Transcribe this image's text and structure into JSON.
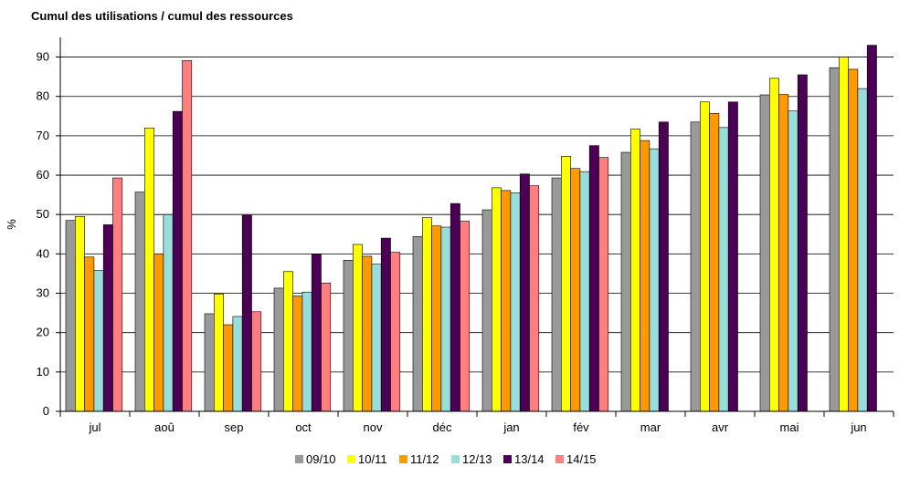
{
  "chart_data": {
    "type": "bar",
    "title": "Cumul des utilisations / cumul des ressources",
    "xlabel": "",
    "ylabel": "%",
    "ylim": [
      0,
      90
    ],
    "yticks": [
      0,
      10,
      20,
      30,
      40,
      50,
      60,
      70,
      80,
      90
    ],
    "grid": "horizontal",
    "legend_position": "bottom",
    "categories": [
      "jul",
      "aoû",
      "sep",
      "oct",
      "nov",
      "déc",
      "jan",
      "fév",
      "mar",
      "avr",
      "mai",
      "jun"
    ],
    "series": [
      {
        "name": "09/10",
        "color": "#999999",
        "values": [
          48.5,
          55.7,
          24.8,
          31.3,
          38.4,
          44.4,
          51.2,
          59.3,
          65.8,
          73.5,
          80.4,
          87.3
        ]
      },
      {
        "name": "10/11",
        "color": "#ffff00",
        "values": [
          49.5,
          72.0,
          29.8,
          35.5,
          42.4,
          49.2,
          56.8,
          64.8,
          71.7,
          78.6,
          84.6,
          90.0
        ]
      },
      {
        "name": "11/12",
        "color": "#ff9900",
        "values": [
          39.2,
          40.0,
          22.0,
          29.3,
          39.4,
          47.1,
          56.1,
          61.7,
          68.8,
          75.7,
          80.5,
          86.9
        ]
      },
      {
        "name": "12/13",
        "color": "#99dddd",
        "values": [
          35.8,
          50.0,
          24.1,
          30.3,
          37.4,
          46.8,
          55.5,
          60.9,
          66.7,
          72.1,
          76.3,
          82.0
        ]
      },
      {
        "name": "13/14",
        "color": "#4b0055",
        "values": [
          47.4,
          76.2,
          49.8,
          40.0,
          44.0,
          52.8,
          60.3,
          67.5,
          73.5,
          78.6,
          85.5,
          93.0
        ]
      },
      {
        "name": "14/15",
        "color": "#ff7f80",
        "values": [
          59.3,
          89.1,
          25.3,
          32.6,
          40.4,
          48.3,
          57.3,
          64.5,
          null,
          null,
          null,
          null
        ]
      }
    ]
  }
}
